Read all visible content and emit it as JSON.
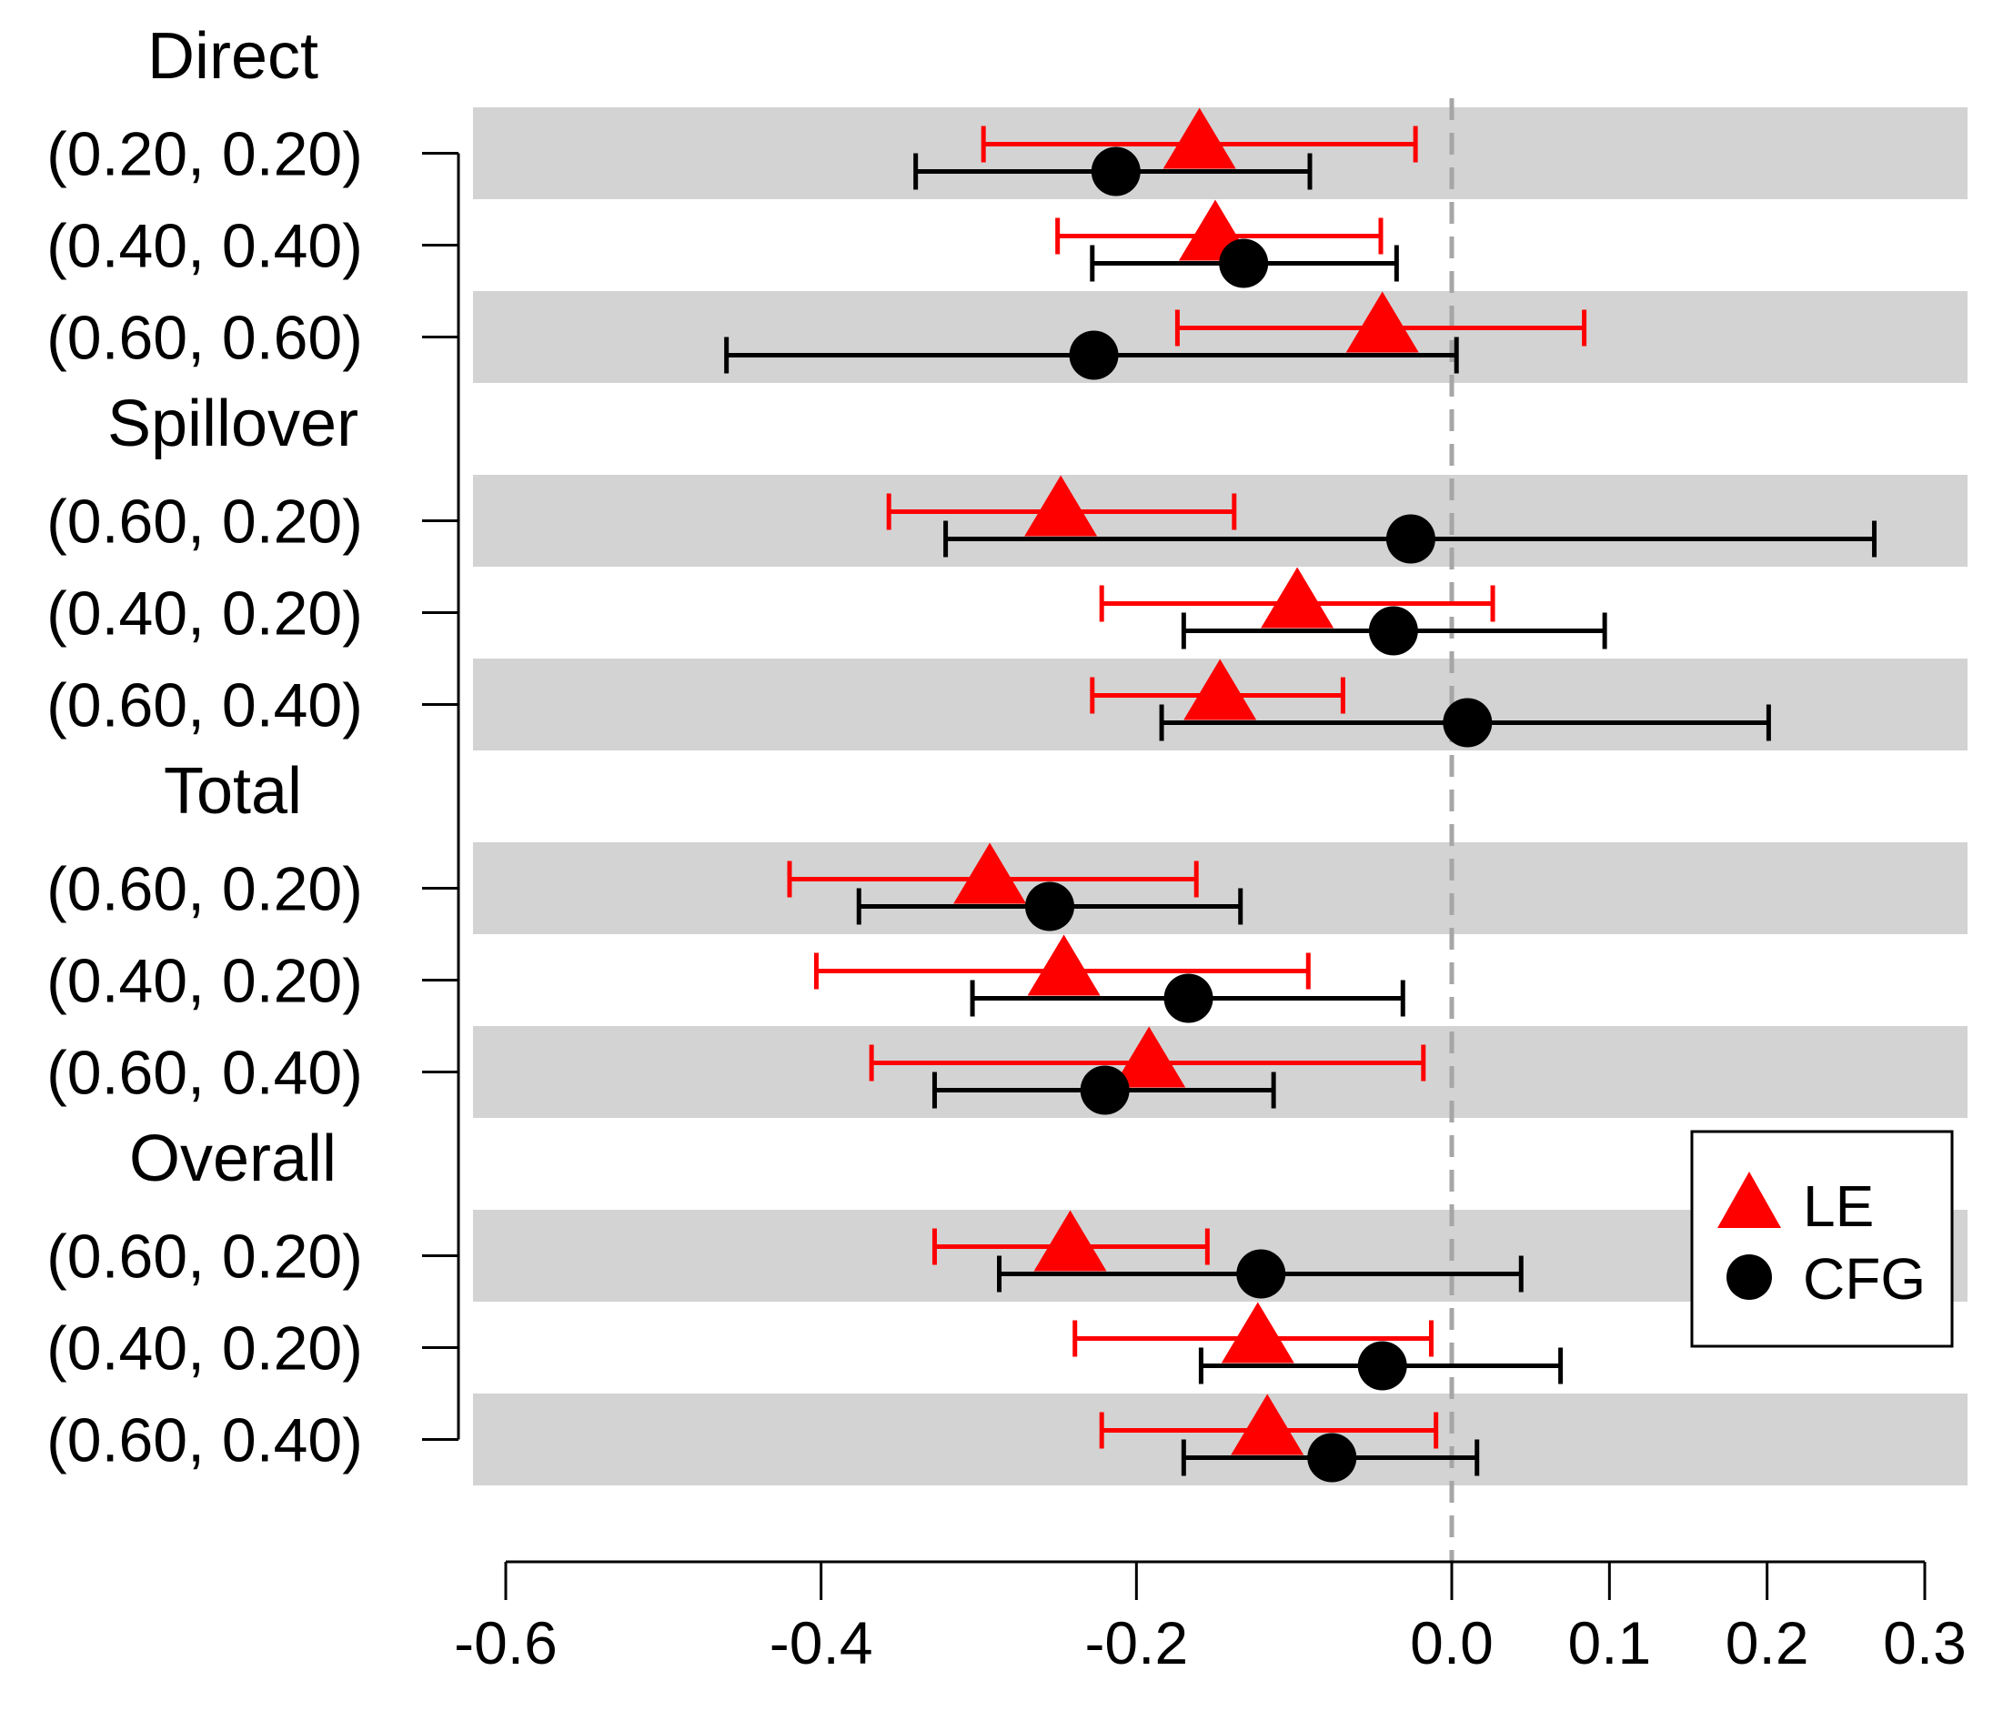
{
  "chart_data": {
    "type": "forest",
    "title": "",
    "xlabel": "",
    "ylabel": "",
    "xlim": [
      -0.6,
      0.3
    ],
    "x_ticks": [
      -0.6,
      -0.4,
      -0.2,
      0.0,
      0.1,
      0.2,
      0.3
    ],
    "x_tick_labels": [
      "-0.6",
      "-0.4",
      "-0.2",
      "0.0",
      "0.1",
      "0.2",
      "0.3"
    ],
    "reference_line": 0.0,
    "legend": {
      "position": "bottom-right",
      "entries": [
        {
          "label": "LE",
          "marker": "triangle",
          "color": "#ff0000"
        },
        {
          "label": "CFG",
          "marker": "circle",
          "color": "#000000"
        }
      ]
    },
    "series": [
      {
        "name": "LE",
        "marker": "triangle",
        "color": "#ff0000"
      },
      {
        "name": "CFG",
        "marker": "circle",
        "color": "#000000"
      }
    ],
    "groups": [
      {
        "name": "Direct",
        "rows": [
          {
            "label": "(0.20, 0.20)",
            "shaded": true,
            "LE": {
              "est": -0.16,
              "lo": -0.297,
              "hi": -0.023
            },
            "CFG": {
              "est": -0.213,
              "lo": -0.34,
              "hi": -0.09
            }
          },
          {
            "label": "(0.40, 0.40)",
            "shaded": false,
            "LE": {
              "est": -0.15,
              "lo": -0.25,
              "hi": -0.045
            },
            "CFG": {
              "est": -0.132,
              "lo": -0.228,
              "hi": -0.035
            }
          },
          {
            "label": "(0.60, 0.60)",
            "shaded": true,
            "LE": {
              "est": -0.044,
              "lo": -0.174,
              "hi": 0.084
            },
            "CFG": {
              "est": -0.227,
              "lo": -0.46,
              "hi": 0.003
            }
          }
        ]
      },
      {
        "name": "Spillover",
        "rows": [
          {
            "label": "(0.60, 0.20)",
            "shaded": true,
            "LE": {
              "est": -0.248,
              "lo": -0.357,
              "hi": -0.138
            },
            "CFG": {
              "est": -0.026,
              "lo": -0.321,
              "hi": 0.268
            }
          },
          {
            "label": "(0.40, 0.20)",
            "shaded": false,
            "LE": {
              "est": -0.098,
              "lo": -0.222,
              "hi": 0.026
            },
            "CFG": {
              "est": -0.037,
              "lo": -0.17,
              "hi": 0.097
            }
          },
          {
            "label": "(0.60, 0.40)",
            "shaded": true,
            "LE": {
              "est": -0.147,
              "lo": -0.228,
              "hi": -0.069
            },
            "CFG": {
              "est": 0.01,
              "lo": -0.184,
              "hi": 0.201
            }
          }
        ]
      },
      {
        "name": "Total",
        "rows": [
          {
            "label": "(0.60, 0.20)",
            "shaded": true,
            "LE": {
              "est": -0.293,
              "lo": -0.42,
              "hi": -0.162
            },
            "CFG": {
              "est": -0.255,
              "lo": -0.376,
              "hi": -0.134
            }
          },
          {
            "label": "(0.40, 0.20)",
            "shaded": false,
            "LE": {
              "est": -0.246,
              "lo": -0.403,
              "hi": -0.091
            },
            "CFG": {
              "est": -0.167,
              "lo": -0.304,
              "hi": -0.031
            }
          },
          {
            "label": "(0.60, 0.40)",
            "shaded": true,
            "LE": {
              "est": -0.192,
              "lo": -0.368,
              "hi": -0.018
            },
            "CFG": {
              "est": -0.22,
              "lo": -0.328,
              "hi": -0.113
            }
          }
        ]
      },
      {
        "name": "Overall",
        "rows": [
          {
            "label": "(0.60, 0.20)",
            "shaded": true,
            "LE": {
              "est": -0.242,
              "lo": -0.328,
              "hi": -0.155
            },
            "CFG": {
              "est": -0.121,
              "lo": -0.287,
              "hi": 0.044
            }
          },
          {
            "label": "(0.40, 0.20)",
            "shaded": false,
            "LE": {
              "est": -0.123,
              "lo": -0.239,
              "hi": -0.013
            },
            "CFG": {
              "est": -0.044,
              "lo": -0.159,
              "hi": 0.069
            }
          },
          {
            "label": "(0.60, 0.40)",
            "shaded": true,
            "LE": {
              "est": -0.117,
              "lo": -0.222,
              "hi": -0.01
            },
            "CFG": {
              "est": -0.076,
              "lo": -0.17,
              "hi": 0.016
            }
          }
        ]
      }
    ]
  }
}
